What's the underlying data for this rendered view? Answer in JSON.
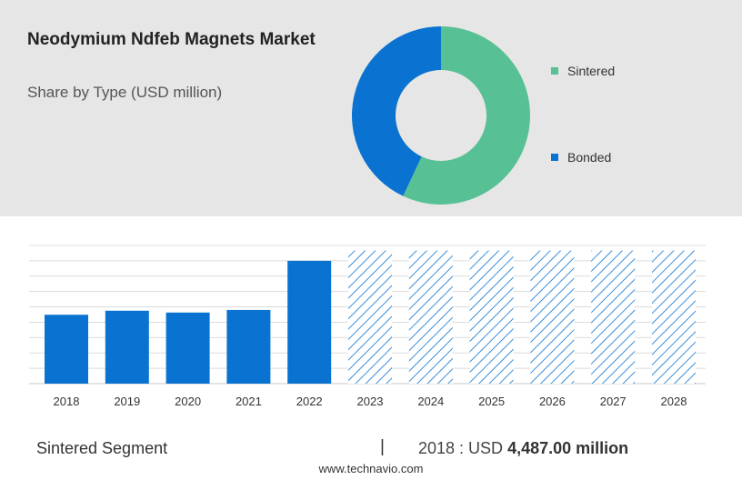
{
  "title": "Neodymium Ndfeb Magnets Market",
  "subtitle": "Share by Type (USD million)",
  "donut": {
    "segments": [
      {
        "name": "Sintered",
        "share": 0.57,
        "color": "#57c195"
      },
      {
        "name": "Bonded",
        "share": 0.43,
        "color": "#0a73d1"
      }
    ]
  },
  "chart_data": {
    "type": "bar",
    "categories": [
      "2018",
      "2019",
      "2020",
      "2021",
      "2022",
      "2023",
      "2024",
      "2025",
      "2026",
      "2027",
      "2028"
    ],
    "values": [
      4487,
      4750,
      4630,
      4800,
      8000,
      null,
      null,
      null,
      null,
      null,
      null
    ],
    "forecast_categories": [
      "2023",
      "2024",
      "2025",
      "2026",
      "2027",
      "2028"
    ],
    "ylim": [
      0,
      9000
    ],
    "grid": true,
    "bar_color": "#0a73d1",
    "forecast_style": "hatched"
  },
  "footer": {
    "segment_label": "Sintered Segment",
    "separator": "|",
    "year_prefix": "2018 : USD",
    "value_text": "4,487.00 million"
  },
  "website": "www.technavio.com"
}
